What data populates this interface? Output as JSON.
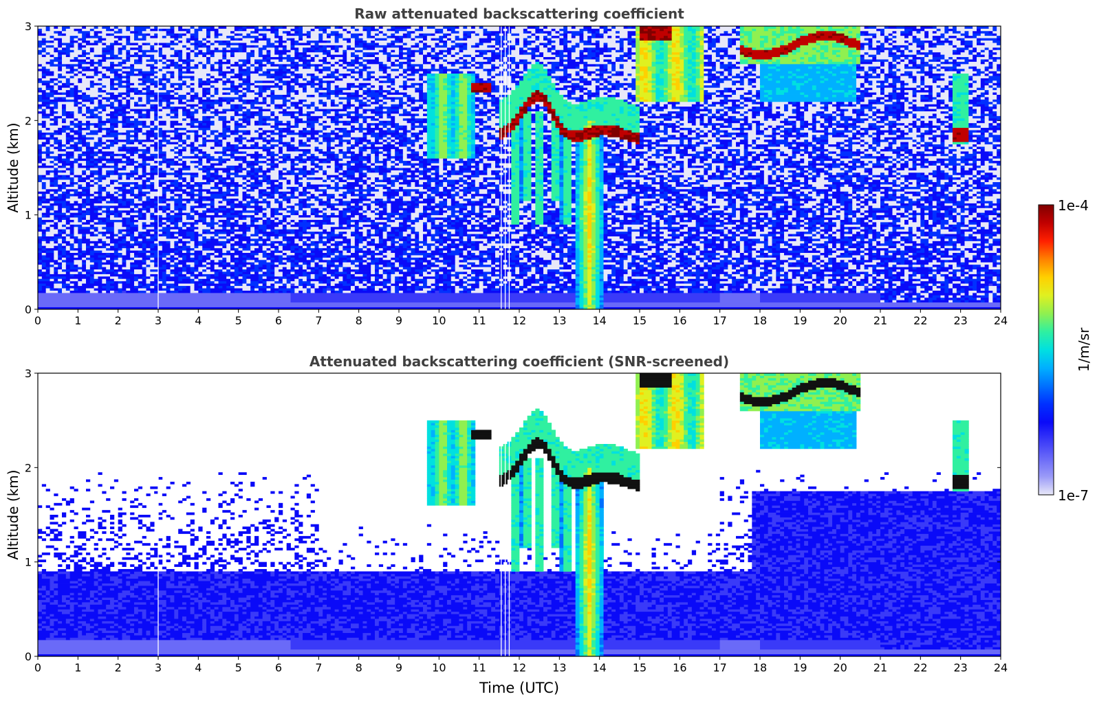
{
  "figure": {
    "colorbar": {
      "label": "1/m/sr",
      "max_label": "1e-4",
      "min_label": "1e-7",
      "colors": [
        "#e8e8f8",
        "#9a9af8",
        "#6a6af8",
        "#3a3af8",
        "#0a0af8",
        "#0030ff",
        "#0070ff",
        "#00b0ff",
        "#00e0e0",
        "#30f0a0",
        "#90f050",
        "#e0f020",
        "#ffd000",
        "#ff8000",
        "#ff2000",
        "#c00000",
        "#800000"
      ],
      "scale": "log"
    }
  },
  "chart_data": [
    {
      "type": "heatmap",
      "title": "Raw attenuated backscattering coefficient",
      "ylabel": "Altitude (km)",
      "xlabel": "",
      "xlim": [
        0,
        24
      ],
      "ylim": [
        0,
        3
      ],
      "xticks": [
        "0",
        "1",
        "2",
        "3",
        "4",
        "5",
        "6",
        "7",
        "8",
        "9",
        "10",
        "11",
        "12",
        "13",
        "14",
        "15",
        "16",
        "17",
        "18",
        "19",
        "20",
        "21",
        "22",
        "23",
        "24"
      ],
      "yticks": [
        "0",
        "1",
        "2",
        "3"
      ],
      "screened": false
    },
    {
      "type": "heatmap",
      "title": "Attenuated backscattering coefficient (SNR-screened)",
      "ylabel": "Altitude (km)",
      "xlabel": "Time (UTC)",
      "xlim": [
        0,
        24
      ],
      "ylim": [
        0,
        3
      ],
      "xticks": [
        "0",
        "1",
        "2",
        "3",
        "4",
        "5",
        "6",
        "7",
        "8",
        "9",
        "10",
        "11",
        "12",
        "13",
        "14",
        "15",
        "16",
        "17",
        "18",
        "19",
        "20",
        "21",
        "22",
        "23",
        "24"
      ],
      "yticks": [
        "0",
        "1",
        "2",
        "3"
      ],
      "screened": true
    }
  ]
}
